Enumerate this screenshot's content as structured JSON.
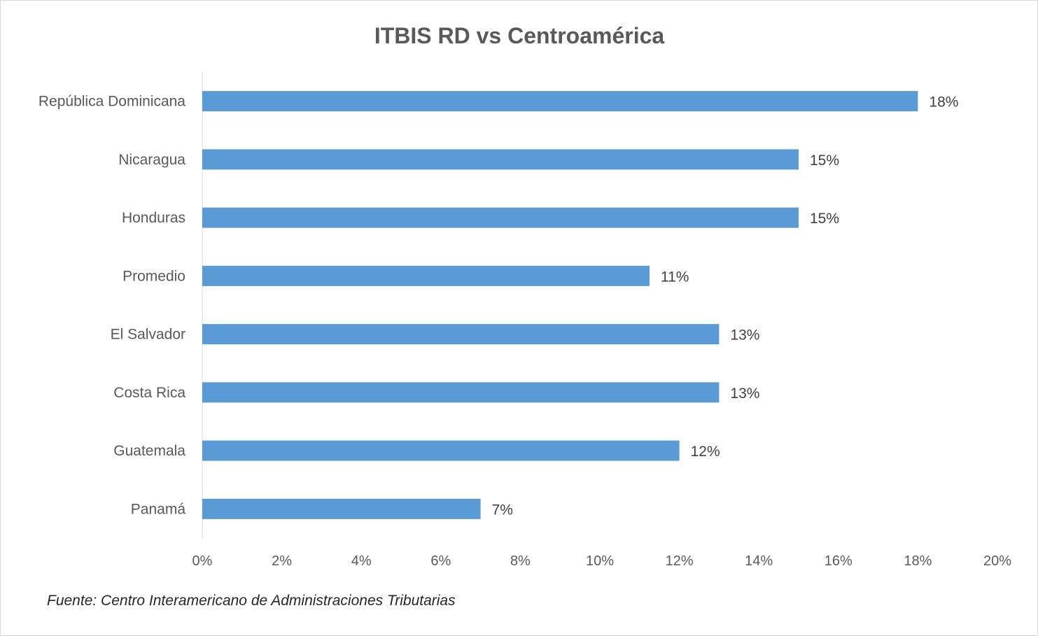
{
  "chart_data": {
    "type": "bar",
    "orientation": "horizontal",
    "title": "ITBIS RD vs Centroamérica",
    "categories": [
      "República Dominicana",
      "Nicaragua",
      "Honduras",
      "Promedio",
      "El Salvador",
      "Costa Rica",
      "Guatemala",
      "Panamá"
    ],
    "values": [
      18,
      15,
      15,
      11.25,
      13,
      13,
      12,
      7
    ],
    "data_labels": [
      "18%",
      "15%",
      "15%",
      "11%",
      "13%",
      "13%",
      "12%",
      "7%"
    ],
    "x_ticks": [
      "0%",
      "2%",
      "4%",
      "6%",
      "8%",
      "10%",
      "12%",
      "14%",
      "16%",
      "18%",
      "20%"
    ],
    "xlim": [
      0,
      20
    ],
    "xlabel": "",
    "ylabel": "",
    "grid": false,
    "legend": "none",
    "bar_color": "#5b9bd5"
  },
  "source_note": "Fuente: Centro Interamericano de Administraciones Tributarias"
}
